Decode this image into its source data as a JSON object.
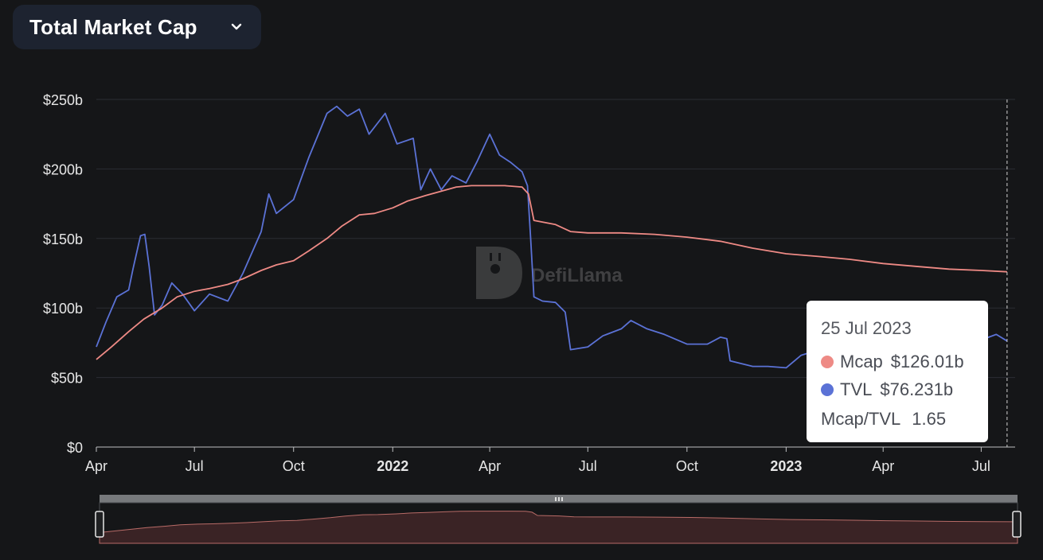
{
  "metric_selector": {
    "label": "Total Market Cap",
    "icon": "chevron-down-icon"
  },
  "watermark": {
    "text": "DefiLlama"
  },
  "tooltip": {
    "date": "25 Jul 2023",
    "rows": [
      {
        "name": "Mcap",
        "value": "$126.01b",
        "color": "#ee8a85"
      },
      {
        "name": "TVL",
        "value": "$76.231b",
        "color": "#5b72d6"
      }
    ],
    "ratio": {
      "name": "Mcap/TVL",
      "value": "1.65"
    }
  },
  "chart_data": {
    "type": "line",
    "x_type": "date",
    "xlim": [
      "2021-04-01",
      "2023-07-31"
    ],
    "ylim": [
      0,
      250
    ],
    "y_unit": "billion USD",
    "y_ticks": [
      {
        "value": 0,
        "label": "$0"
      },
      {
        "value": 50,
        "label": "$50b"
      },
      {
        "value": 100,
        "label": "$100b"
      },
      {
        "value": 150,
        "label": "$150b"
      },
      {
        "value": 200,
        "label": "$200b"
      },
      {
        "value": 250,
        "label": "$250b"
      }
    ],
    "x_ticks": [
      {
        "date": "2021-04-01",
        "label": "Apr",
        "bold": false
      },
      {
        "date": "2021-07-01",
        "label": "Jul",
        "bold": false
      },
      {
        "date": "2021-10-01",
        "label": "Oct",
        "bold": false
      },
      {
        "date": "2022-01-01",
        "label": "2022",
        "bold": true
      },
      {
        "date": "2022-04-01",
        "label": "Apr",
        "bold": false
      },
      {
        "date": "2022-07-01",
        "label": "Jul",
        "bold": false
      },
      {
        "date": "2022-10-01",
        "label": "Oct",
        "bold": false
      },
      {
        "date": "2023-01-01",
        "label": "2023",
        "bold": true
      },
      {
        "date": "2023-04-01",
        "label": "Apr",
        "bold": false
      },
      {
        "date": "2023-07-01",
        "label": "Jul",
        "bold": false
      }
    ],
    "grid": true,
    "legend": "none",
    "crosshair_date": "2023-07-25",
    "series": [
      {
        "name": "Mcap",
        "color": "#ee8a85",
        "points": [
          [
            "2021-04-01",
            63
          ],
          [
            "2021-04-15",
            72
          ],
          [
            "2021-05-01",
            83
          ],
          [
            "2021-05-15",
            92
          ],
          [
            "2021-06-01",
            100
          ],
          [
            "2021-06-15",
            108
          ],
          [
            "2021-07-01",
            112
          ],
          [
            "2021-07-15",
            114
          ],
          [
            "2021-08-01",
            117
          ],
          [
            "2021-08-15",
            121
          ],
          [
            "2021-09-01",
            127
          ],
          [
            "2021-09-15",
            131
          ],
          [
            "2021-10-01",
            134
          ],
          [
            "2021-10-15",
            141
          ],
          [
            "2021-11-01",
            150
          ],
          [
            "2021-11-15",
            159
          ],
          [
            "2021-12-01",
            167
          ],
          [
            "2021-12-15",
            168
          ],
          [
            "2022-01-01",
            172
          ],
          [
            "2022-01-15",
            177
          ],
          [
            "2022-02-01",
            181
          ],
          [
            "2022-02-15",
            184
          ],
          [
            "2022-03-01",
            187
          ],
          [
            "2022-03-15",
            188
          ],
          [
            "2022-04-01",
            188
          ],
          [
            "2022-04-15",
            188
          ],
          [
            "2022-05-01",
            187
          ],
          [
            "2022-05-07",
            182
          ],
          [
            "2022-05-12",
            163
          ],
          [
            "2022-06-01",
            160
          ],
          [
            "2022-06-15",
            155
          ],
          [
            "2022-07-01",
            154
          ],
          [
            "2022-08-01",
            154
          ],
          [
            "2022-09-01",
            153
          ],
          [
            "2022-10-01",
            151
          ],
          [
            "2022-11-01",
            148
          ],
          [
            "2022-12-01",
            143
          ],
          [
            "2023-01-01",
            139
          ],
          [
            "2023-02-01",
            137
          ],
          [
            "2023-03-01",
            135
          ],
          [
            "2023-04-01",
            132
          ],
          [
            "2023-05-01",
            130
          ],
          [
            "2023-06-01",
            128
          ],
          [
            "2023-07-01",
            127
          ],
          [
            "2023-07-25",
            126.01
          ]
        ]
      },
      {
        "name": "TVL",
        "color": "#5b72d6",
        "points": [
          [
            "2021-04-01",
            72
          ],
          [
            "2021-04-10",
            90
          ],
          [
            "2021-04-20",
            108
          ],
          [
            "2021-05-01",
            113
          ],
          [
            "2021-05-05",
            128
          ],
          [
            "2021-05-12",
            152
          ],
          [
            "2021-05-16",
            153
          ],
          [
            "2021-05-20",
            130
          ],
          [
            "2021-05-25",
            95
          ],
          [
            "2021-06-01",
            102
          ],
          [
            "2021-06-10",
            118
          ],
          [
            "2021-06-20",
            110
          ],
          [
            "2021-07-01",
            98
          ],
          [
            "2021-07-15",
            110
          ],
          [
            "2021-08-01",
            105
          ],
          [
            "2021-08-15",
            125
          ],
          [
            "2021-09-01",
            155
          ],
          [
            "2021-09-08",
            182
          ],
          [
            "2021-09-15",
            168
          ],
          [
            "2021-10-01",
            178
          ],
          [
            "2021-10-15",
            208
          ],
          [
            "2021-11-01",
            240
          ],
          [
            "2021-11-10",
            245
          ],
          [
            "2021-11-20",
            238
          ],
          [
            "2021-12-01",
            243
          ],
          [
            "2021-12-10",
            225
          ],
          [
            "2021-12-25",
            240
          ],
          [
            "2022-01-05",
            218
          ],
          [
            "2022-01-20",
            222
          ],
          [
            "2022-01-27",
            185
          ],
          [
            "2022-02-05",
            200
          ],
          [
            "2022-02-15",
            185
          ],
          [
            "2022-02-25",
            195
          ],
          [
            "2022-03-10",
            190
          ],
          [
            "2022-03-20",
            205
          ],
          [
            "2022-04-01",
            225
          ],
          [
            "2022-04-10",
            210
          ],
          [
            "2022-04-20",
            205
          ],
          [
            "2022-05-01",
            198
          ],
          [
            "2022-05-06",
            188
          ],
          [
            "2022-05-09",
            150
          ],
          [
            "2022-05-12",
            108
          ],
          [
            "2022-05-20",
            105
          ],
          [
            "2022-06-01",
            104
          ],
          [
            "2022-06-10",
            97
          ],
          [
            "2022-06-15",
            70
          ],
          [
            "2022-07-01",
            72
          ],
          [
            "2022-07-15",
            80
          ],
          [
            "2022-08-01",
            85
          ],
          [
            "2022-08-10",
            91
          ],
          [
            "2022-08-25",
            85
          ],
          [
            "2022-09-10",
            81
          ],
          [
            "2022-10-01",
            74
          ],
          [
            "2022-10-20",
            74
          ],
          [
            "2022-11-01",
            79
          ],
          [
            "2022-11-07",
            78
          ],
          [
            "2022-11-10",
            62
          ],
          [
            "2022-12-01",
            58
          ],
          [
            "2022-12-15",
            58
          ],
          [
            "2023-01-01",
            57
          ],
          [
            "2023-01-15",
            66
          ],
          [
            "2023-02-01",
            70
          ],
          [
            "2023-03-01",
            68
          ],
          [
            "2023-04-01",
            72
          ],
          [
            "2023-05-01",
            73
          ],
          [
            "2023-06-01",
            76
          ],
          [
            "2023-07-01",
            77
          ],
          [
            "2023-07-15",
            81
          ],
          [
            "2023-07-25",
            76.231
          ]
        ]
      }
    ]
  }
}
